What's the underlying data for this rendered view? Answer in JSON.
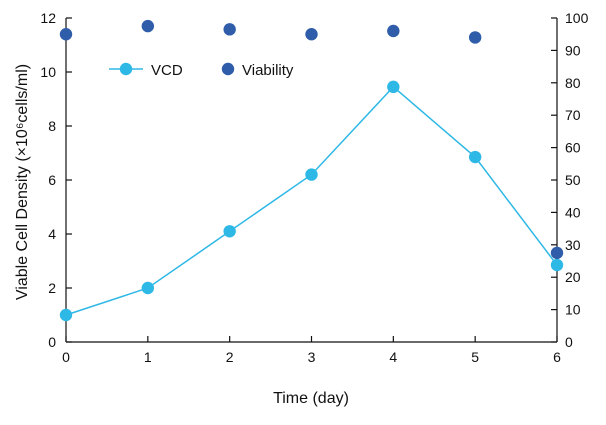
{
  "chart_data": {
    "type": "line",
    "title": "",
    "xlabel": "Time (day)",
    "ylabel": "Viable Cell Density  (×10⁶cells/ml)",
    "y2label": "",
    "x": [
      0,
      1,
      2,
      3,
      4,
      5,
      6
    ],
    "xlim": [
      0,
      6
    ],
    "ylim": [
      0,
      12
    ],
    "y2lim": [
      0,
      100
    ],
    "xticks": [
      "0",
      "1",
      "2",
      "3",
      "4",
      "5",
      "6"
    ],
    "yticks": [
      "0",
      "2",
      "4",
      "6",
      "8",
      "10",
      "12"
    ],
    "y2ticks": [
      "0",
      "10",
      "20",
      "30",
      "40",
      "50",
      "60",
      "70",
      "80",
      "90",
      "100"
    ],
    "grid": false,
    "legend_position": "top-left",
    "series": [
      {
        "name": "VCD",
        "axis": "left",
        "style": "line+marker",
        "color": "#2EB8E6",
        "values": [
          1.0,
          2.0,
          4.1,
          6.2,
          9.45,
          6.85,
          2.85
        ]
      },
      {
        "name": "Viability",
        "axis": "right",
        "style": "marker",
        "color": "#2F5DAA",
        "values": [
          95.0,
          97.5,
          96.5,
          95.0,
          96.0,
          94.0,
          27.5
        ]
      }
    ]
  }
}
